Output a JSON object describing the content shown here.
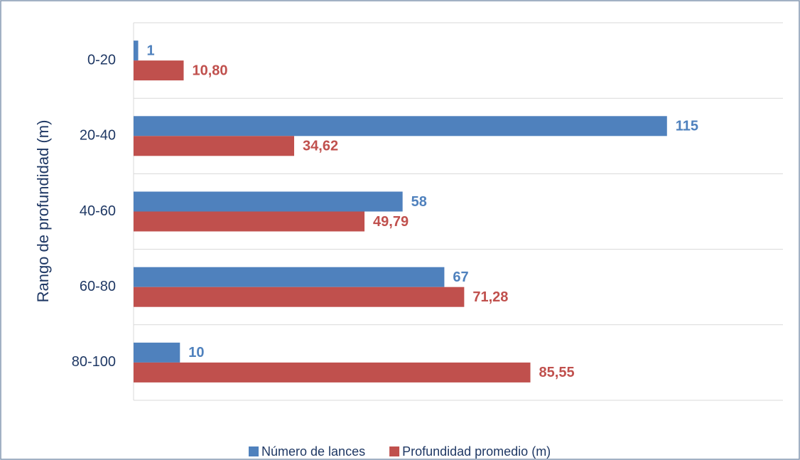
{
  "chart_data": {
    "type": "barh",
    "y_label": "Rango de profundidad (m)",
    "categories": [
      "0-20",
      "20-40",
      "40-60",
      "60-80",
      "80-100"
    ],
    "series": [
      {
        "name": "Número de lances",
        "color": "#4f81bd",
        "values": [
          1,
          115,
          58,
          67,
          10
        ]
      },
      {
        "name": "Profundidad promedio (m)",
        "color": "#c0504d",
        "values": [
          10.8,
          34.62,
          49.79,
          71.28,
          85.55
        ],
        "value_labels": [
          "10,80",
          "34,62",
          "49,79",
          "71,28",
          "85,55"
        ]
      }
    ],
    "xlim": [
      0,
      140
    ],
    "legend": "bottom"
  }
}
